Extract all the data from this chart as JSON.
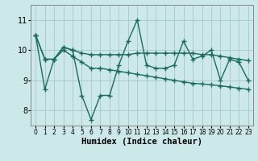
{
  "bg_color": "#cce8e8",
  "grid_color": "#aacccc",
  "line_color": "#1a6b5a",
  "line_width": 1.0,
  "marker": "+",
  "marker_size": 4,
  "marker_edge_width": 1.0,
  "xlabel": "Humidex (Indice chaleur)",
  "xlabel_fontsize": 7.5,
  "ytick_fontsize": 7,
  "xtick_fontsize": 5.5,
  "yticks": [
    8,
    9,
    10,
    11
  ],
  "ylim": [
    7.5,
    11.5
  ],
  "xlim": [
    -0.5,
    23.5
  ],
  "xtick_labels": [
    "0",
    "1",
    "2",
    "3",
    "4",
    "5",
    "6",
    "7",
    "8",
    "9",
    "10",
    "11",
    "12",
    "13",
    "14",
    "15",
    "16",
    "17",
    "18",
    "19",
    "20",
    "21",
    "22",
    "23"
  ],
  "series1": [
    10.5,
    8.7,
    9.7,
    10.1,
    10.0,
    8.5,
    7.7,
    8.5,
    8.5,
    9.5,
    10.3,
    11.0,
    9.5,
    9.4,
    9.4,
    9.5,
    10.3,
    9.7,
    9.8,
    10.0,
    9.0,
    9.7,
    9.6,
    9.0
  ],
  "series2": [
    10.5,
    9.7,
    9.7,
    10.1,
    10.0,
    9.9,
    9.85,
    9.85,
    9.85,
    9.85,
    9.85,
    9.9,
    9.9,
    9.9,
    9.9,
    9.9,
    9.9,
    9.9,
    9.85,
    9.85,
    9.8,
    9.75,
    9.7,
    9.65
  ],
  "series3": [
    10.5,
    9.7,
    9.7,
    10.0,
    9.8,
    9.6,
    9.4,
    9.4,
    9.35,
    9.3,
    9.25,
    9.2,
    9.15,
    9.1,
    9.05,
    9.0,
    8.95,
    8.9,
    8.88,
    8.85,
    8.82,
    8.78,
    8.74,
    8.7
  ]
}
